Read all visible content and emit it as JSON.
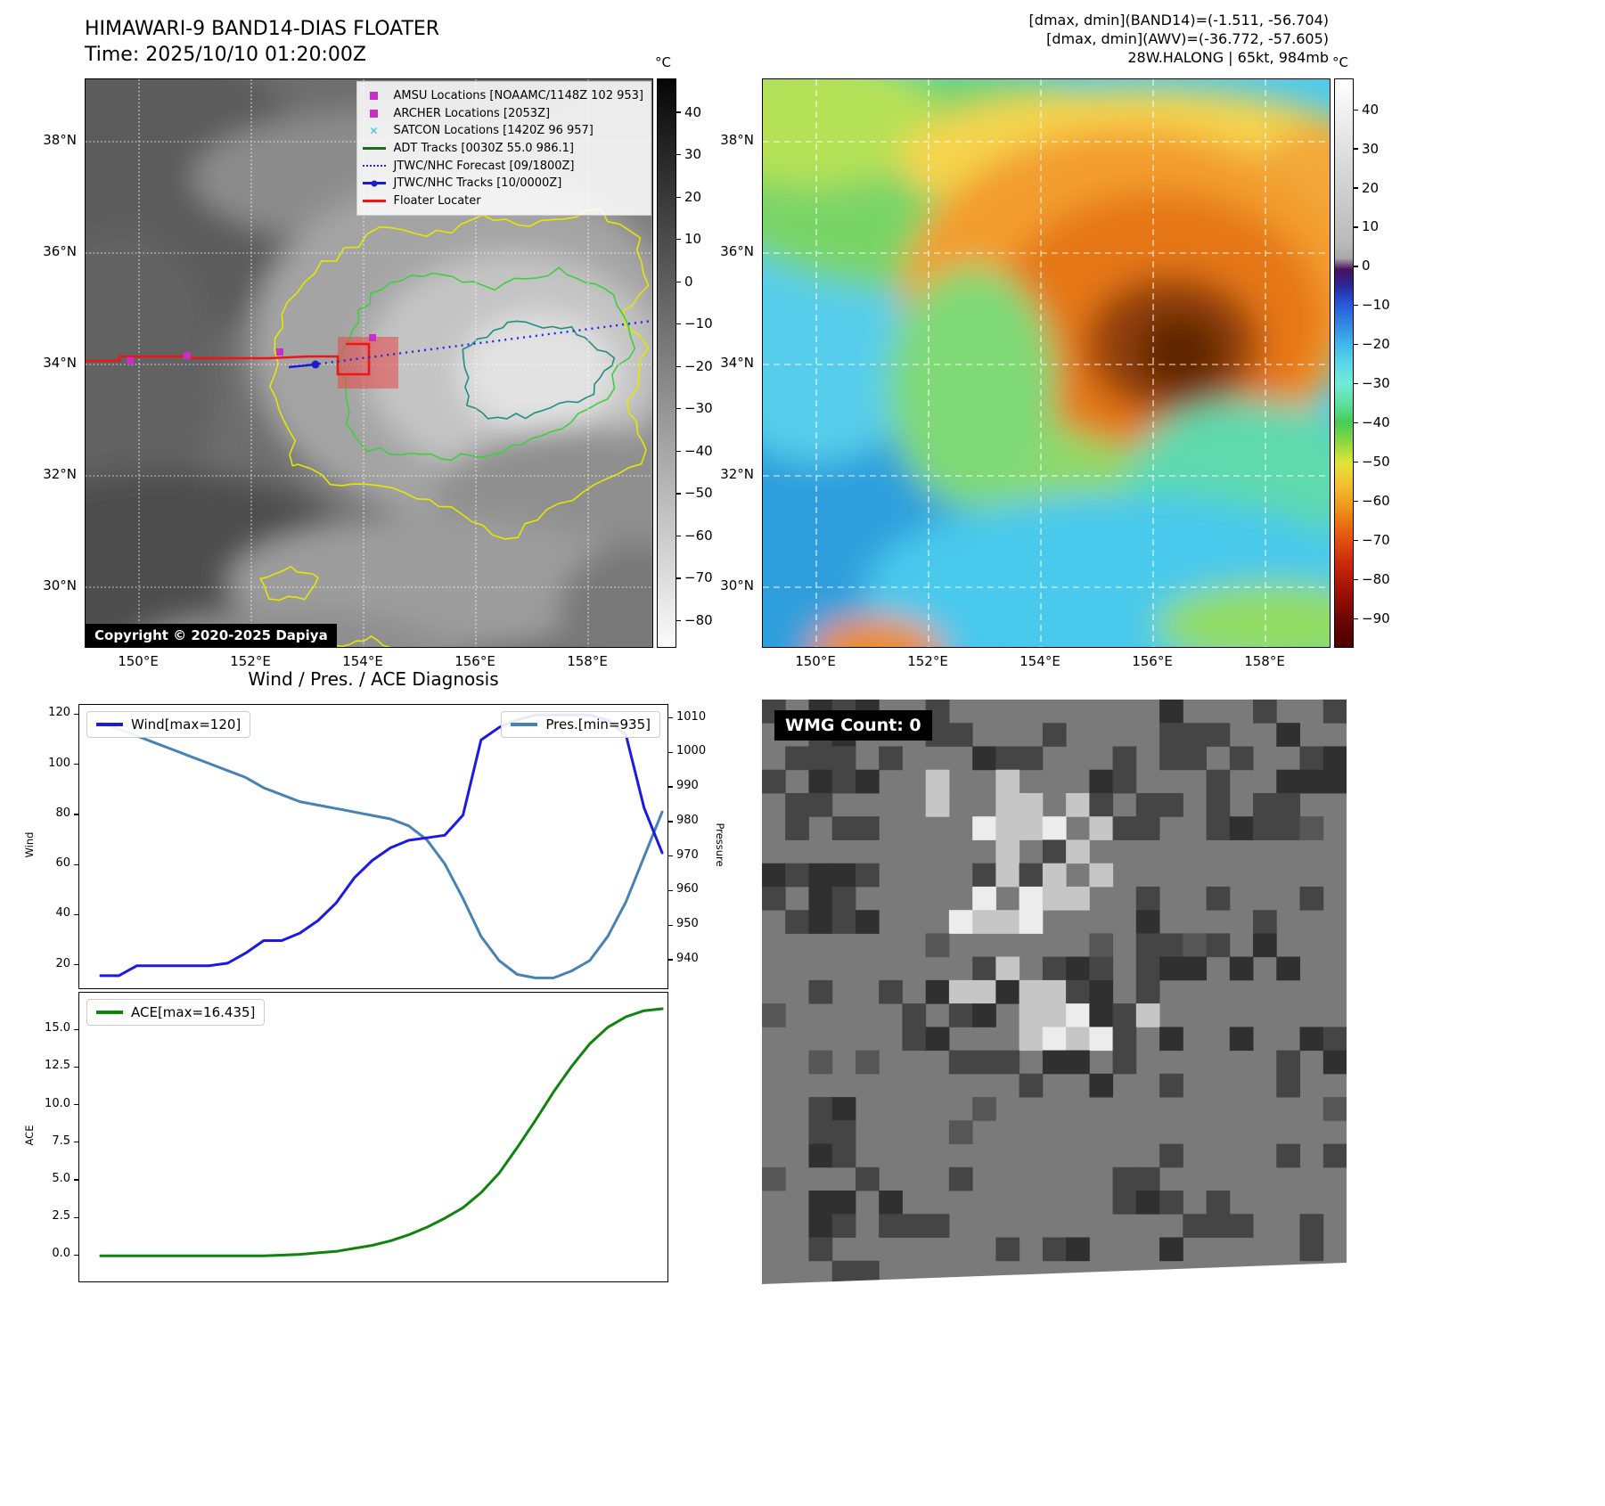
{
  "top_left": {
    "title": "HIMAWARI-9 BAND14-DIAS FLOATER",
    "time_line": "Time: 2025/10/10 01:20:00Z",
    "legend_items": [
      {
        "label": "AMSU Locations [NOAAMC/1148Z 102 953]",
        "marker": "square",
        "color": "#c72fc7"
      },
      {
        "label": "ARCHER Locations [2053Z]",
        "marker": "square",
        "color": "#c72fc7"
      },
      {
        "label": "SATCON Locations [1420Z 96 957]",
        "marker": "x",
        "color": "#2fc7c7"
      },
      {
        "label": "ADT Tracks [0030Z 55.0 986.1]",
        "marker": "line",
        "color": "#1a6b1a"
      },
      {
        "label": "JTWC/NHC Forecast [09/1800Z]",
        "marker": "dotted",
        "color": "#2424e8"
      },
      {
        "label": "JTWC/NHC Tracks [10/0000Z]",
        "marker": "line-dot",
        "color": "#1c1ccc"
      },
      {
        "label": "Floater Locater",
        "marker": "line",
        "color": "#f01414"
      }
    ],
    "map_overlay_colors": {
      "floater_line": "#f01414",
      "forecast_line": "#2424e8",
      "jtwc_track": "#1c1ccc",
      "amsu_marker": "#c72fc7",
      "shaded_region": "rgba(235,70,70,0.55)"
    },
    "colorbar": {
      "unit": "°C",
      "ticks": [
        40,
        30,
        20,
        10,
        0,
        -10,
        -20,
        -30,
        -40,
        -50,
        -60,
        -70,
        -80
      ],
      "vmax": 48,
      "vmin": -86
    },
    "lat_labels": [
      "38°N",
      "36°N",
      "34°N",
      "32°N",
      "30°N"
    ],
    "lon_labels": [
      "150°E",
      "152°E",
      "154°E",
      "156°E",
      "158°E"
    ],
    "copyright": "Copyright © 2020-2025 Dapiya"
  },
  "top_right": {
    "header_lines": [
      "[dmax, dmin](BAND14)=(-1.511, -56.704)",
      "[dmax, dmin](AWV)=(-36.772, -57.605)",
      "28W.HALONG | 65kt, 984mb"
    ],
    "colorbar": {
      "unit": "°C",
      "ticks": [
        40,
        30,
        20,
        10,
        0,
        -10,
        -20,
        -30,
        -40,
        -50,
        -60,
        -70,
        -80,
        -90
      ],
      "vmax": 48,
      "vmin": -97
    },
    "lat_labels": [
      "38°N",
      "36°N",
      "34°N",
      "32°N",
      "30°N"
    ],
    "lon_labels": [
      "150°E",
      "152°E",
      "154°E",
      "156°E",
      "158°E"
    ]
  },
  "bottom_left": {
    "section_title": "Wind / Pres. / ACE Diagnosis",
    "wind_axis_label": "Wind",
    "pressure_axis_label": "Pressure",
    "ace_axis_label": "ACE",
    "wind_legend": "Wind[max=120]",
    "pressure_legend": "Pres.[min=935]",
    "ace_legend": "ACE[max=16.435]"
  },
  "bottom_right": {
    "wmg_label": "WMG Count: 0"
  },
  "chart_data": [
    {
      "type": "line",
      "title": "Wind / Pres. / ACE Diagnosis",
      "x_axis": "time steps (no x tick labels shown)",
      "grid": false,
      "series": [
        {
          "name": "Wind[max=120]",
          "axis": "left",
          "axis_label": "Wind",
          "color": "#1b1be0",
          "yticks": [
            20,
            40,
            60,
            80,
            100,
            120
          ],
          "ylim": [
            11,
            124
          ],
          "values": [
            16,
            16,
            20,
            20,
            20,
            20,
            20,
            21,
            25,
            30,
            30,
            33,
            38,
            45,
            55,
            62,
            67,
            70,
            71,
            72,
            80,
            110,
            115,
            118,
            120,
            120,
            120,
            120,
            118,
            112,
            83,
            65
          ]
        },
        {
          "name": "Pres.[min=935]",
          "axis": "right",
          "axis_label": "Pressure",
          "color": "#4682b4",
          "yticks": [
            940,
            950,
            960,
            970,
            980,
            990,
            1000,
            1010
          ],
          "ylim": [
            932,
            1014
          ],
          "values": [
            1009,
            1007,
            1005,
            1003,
            1001,
            999,
            997,
            995,
            993,
            990,
            988,
            986,
            985,
            984,
            983,
            982,
            981,
            979,
            975,
            968,
            958,
            947,
            940,
            936,
            935,
            935,
            937,
            940,
            947,
            957,
            970,
            983
          ]
        }
      ]
    },
    {
      "type": "line",
      "grid": false,
      "series": [
        {
          "name": "ACE[max=16.435]",
          "axis": "left",
          "axis_label": "ACE",
          "color": "#0e840e",
          "yticks": [
            0,
            2.5,
            5,
            7.5,
            10,
            12.5,
            15
          ],
          "ylim": [
            -1.7,
            17.5
          ],
          "values": [
            0,
            0,
            0,
            0,
            0,
            0,
            0,
            0,
            0,
            0,
            0.05,
            0.1,
            0.2,
            0.3,
            0.5,
            0.7,
            1.0,
            1.4,
            1.9,
            2.5,
            3.2,
            4.2,
            5.5,
            7.2,
            9.0,
            10.9,
            12.6,
            14.1,
            15.2,
            15.9,
            16.3,
            16.435
          ]
        }
      ]
    }
  ]
}
